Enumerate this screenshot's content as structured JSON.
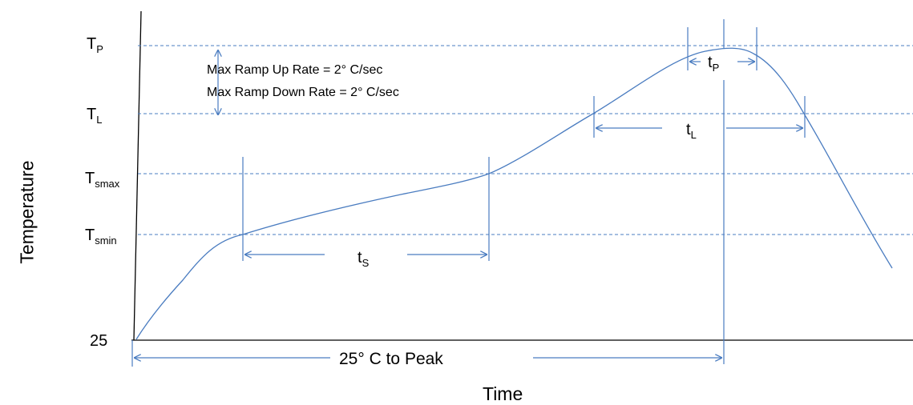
{
  "labels": {
    "tp_main": "T",
    "tp_sub": "P",
    "tl_main": "T",
    "tl_sub": "L",
    "tsmax_main": "T",
    "tsmax_sub": "smax",
    "tsmin_main": "T",
    "tsmin_sub": "smin",
    "origin": "25"
  },
  "notes": {
    "ramp_up": "Max Ramp Up Rate = 2° C/sec",
    "ramp_down": "Max Ramp Down Rate = 2° C/sec"
  },
  "spans": {
    "ts_main": "t",
    "ts_sub": "S",
    "tl_main": "t",
    "tl_sub": "L",
    "tp_main": "t",
    "tp_sub": "P",
    "to_peak": "25° C to Peak"
  },
  "axes": {
    "y_title": "Temperature",
    "x_title": "Time"
  },
  "colors": {
    "line": "#4a7cc0",
    "axis": "#000000"
  }
}
